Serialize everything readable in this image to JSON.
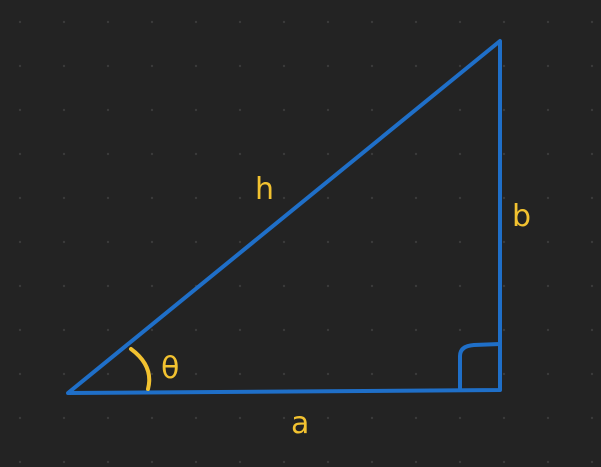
{
  "diagram": {
    "labels": {
      "hypotenuse": "h",
      "opposite": "b",
      "adjacent": "a",
      "angle": "θ"
    },
    "colors": {
      "background": "#232323",
      "grid_dot": "#3a3a3a",
      "triangle_stroke": "#1f6fc8",
      "label_text": "#f2c230",
      "angle_arc": "#f2c230"
    },
    "icons": {
      "right_angle": "right-angle-marker-icon",
      "angle_arc": "angle-arc-icon"
    }
  }
}
